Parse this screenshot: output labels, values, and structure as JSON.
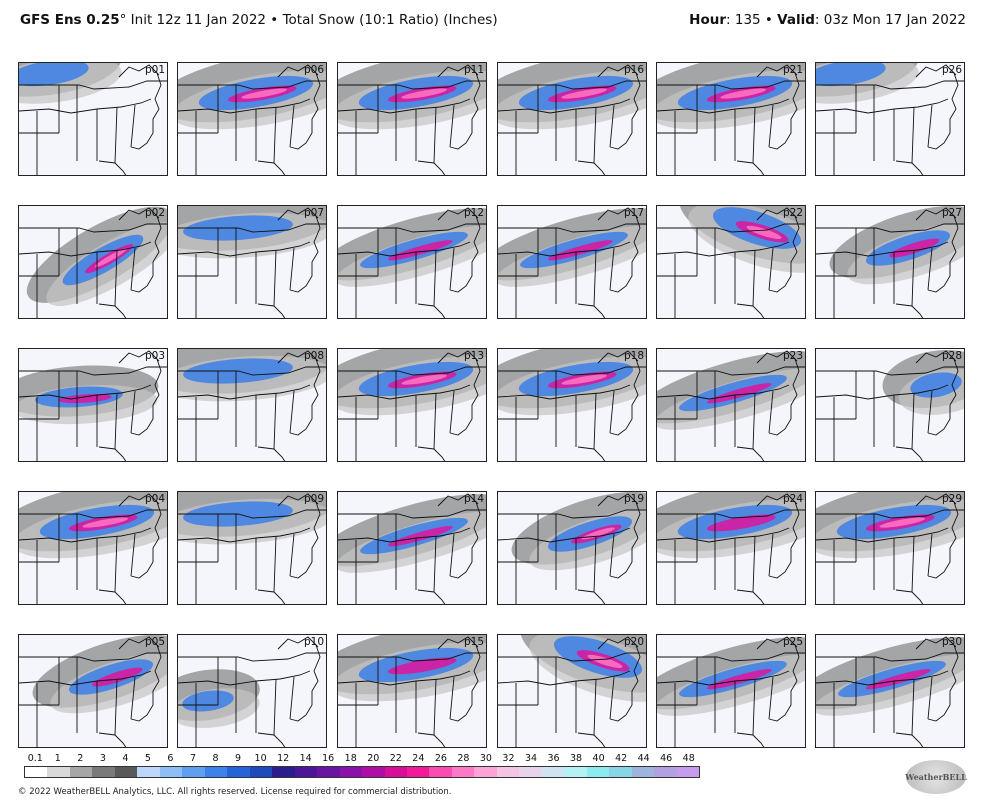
{
  "header": {
    "model": "GFS Ens 0.25",
    "degree": "°",
    "init": " Init 12z 11 Jan 2022",
    "sep": " • ",
    "product": "Total Snow (10:1 Ratio) (Inches)",
    "hour_label": "Hour",
    "hour_value": ": 135",
    "valid_sep": " • ",
    "valid_label": "Valid",
    "valid_value": ": 03z Mon 17 Jan 2022"
  },
  "panels": [
    {
      "id": "p01",
      "intensity": 1,
      "band": "northwest"
    },
    {
      "id": "p06",
      "intensity": 3,
      "band": "north-central"
    },
    {
      "id": "p11",
      "intensity": 3,
      "band": "north-central"
    },
    {
      "id": "p16",
      "intensity": 3,
      "band": "north-central"
    },
    {
      "id": "p21",
      "intensity": 3,
      "band": "north-central"
    },
    {
      "id": "p26",
      "intensity": 1,
      "band": "northwest"
    },
    {
      "id": "p02",
      "intensity": 3,
      "band": "southeast"
    },
    {
      "id": "p07",
      "intensity": 1,
      "band": "north"
    },
    {
      "id": "p12",
      "intensity": 2,
      "band": "central"
    },
    {
      "id": "p17",
      "intensity": 2,
      "band": "central"
    },
    {
      "id": "p22",
      "intensity": 3,
      "band": "northeast"
    },
    {
      "id": "p27",
      "intensity": 2,
      "band": "central-east"
    },
    {
      "id": "p03",
      "intensity": 2,
      "band": "central-south"
    },
    {
      "id": "p08",
      "intensity": 1,
      "band": "north"
    },
    {
      "id": "p13",
      "intensity": 3,
      "band": "north-central"
    },
    {
      "id": "p18",
      "intensity": 3,
      "band": "north-central"
    },
    {
      "id": "p23",
      "intensity": 2,
      "band": "central"
    },
    {
      "id": "p28",
      "intensity": 1,
      "band": "east"
    },
    {
      "id": "p04",
      "intensity": 3,
      "band": "north-central"
    },
    {
      "id": "p09",
      "intensity": 1,
      "band": "north"
    },
    {
      "id": "p14",
      "intensity": 2,
      "band": "central"
    },
    {
      "id": "p19",
      "intensity": 3,
      "band": "central-east"
    },
    {
      "id": "p24",
      "intensity": 2,
      "band": "north-central"
    },
    {
      "id": "p29",
      "intensity": 3,
      "band": "north-central"
    },
    {
      "id": "p05",
      "intensity": 2,
      "band": "central-east"
    },
    {
      "id": "p10",
      "intensity": 1,
      "band": "southwest"
    },
    {
      "id": "p15",
      "intensity": 2,
      "band": "north-central"
    },
    {
      "id": "p20",
      "intensity": 3,
      "band": "northeast"
    },
    {
      "id": "p25",
      "intensity": 2,
      "band": "central"
    },
    {
      "id": "p30",
      "intensity": 2,
      "band": "central"
    }
  ],
  "legend": {
    "ticks": [
      "0.1",
      "1",
      "2",
      "3",
      "4",
      "5",
      "6",
      "7",
      "8",
      "9",
      "10",
      "12",
      "14",
      "16",
      "18",
      "20",
      "22",
      "24",
      "26",
      "28",
      "30",
      "32",
      "34",
      "36",
      "38",
      "40",
      "42",
      "44",
      "46",
      "48"
    ],
    "colors": [
      "#ffffff",
      "#d9d9d9",
      "#a6a6a6",
      "#7a7a7a",
      "#595959",
      "#bcd7fb",
      "#8fbdf6",
      "#5f9ff0",
      "#3b82ea",
      "#2563d8",
      "#1d4bbd",
      "#2a1e8f",
      "#4b1798",
      "#6a14a2",
      "#8c10aa",
      "#b00da6",
      "#d80d9a",
      "#f31a9a",
      "#fb4ab1",
      "#fd78c6",
      "#fda3d6",
      "#f4c4e4",
      "#e7d3ec",
      "#cfe3f1",
      "#b5f0f4",
      "#8eeaf1",
      "#88d6e5",
      "#9fb4dc",
      "#b3a0e0",
      "#c79cee",
      "#d59bf3",
      "#e6a6fb"
    ],
    "footer": "© 2022 WeatherBELL Analytics, LLC. All rights reserved. License required for commercial distribution.",
    "logo": "WeatherBELL"
  }
}
